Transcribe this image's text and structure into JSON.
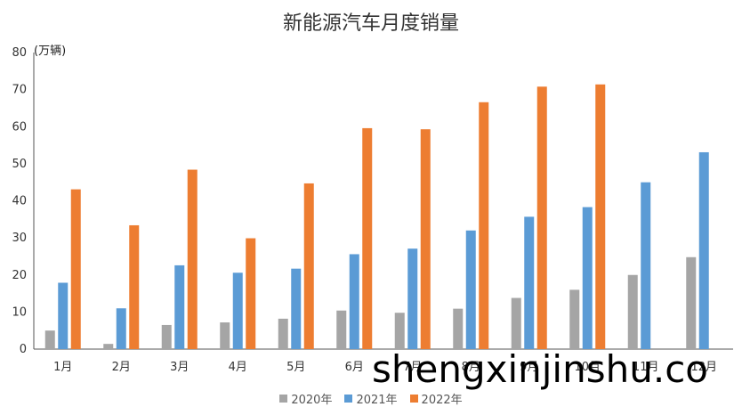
{
  "chart_data": {
    "type": "bar",
    "title": "新能源汽车月度销量",
    "unit_label": "(万辆)",
    "categories": [
      "1月",
      "2月",
      "3月",
      "4月",
      "5月",
      "6月",
      "7月",
      "8月",
      "9月",
      "10月",
      "11月",
      "12月"
    ],
    "series": [
      {
        "name": "2020年",
        "color": "#a5a5a5",
        "values": [
          5.0,
          1.4,
          6.5,
          7.2,
          8.2,
          10.4,
          9.8,
          10.9,
          13.8,
          16.0,
          20.0,
          24.8
        ]
      },
      {
        "name": "2021年",
        "color": "#5b9bd5",
        "values": [
          17.9,
          11.0,
          22.6,
          20.6,
          21.7,
          25.6,
          27.1,
          32.0,
          35.7,
          38.3,
          45.0,
          53.1
        ]
      },
      {
        "name": "2022年",
        "color": "#ed7d31",
        "values": [
          43.1,
          33.4,
          48.4,
          29.9,
          44.7,
          59.6,
          59.3,
          66.6,
          70.8,
          71.4,
          null,
          null
        ]
      }
    ],
    "yticks": [
      "0",
      "10",
      "20",
      "30",
      "40",
      "50",
      "60",
      "70",
      "80"
    ],
    "ylim": [
      0,
      80
    ],
    "grid": false,
    "legend_position": "bottom"
  },
  "watermark": "shengxinjinshu.co"
}
